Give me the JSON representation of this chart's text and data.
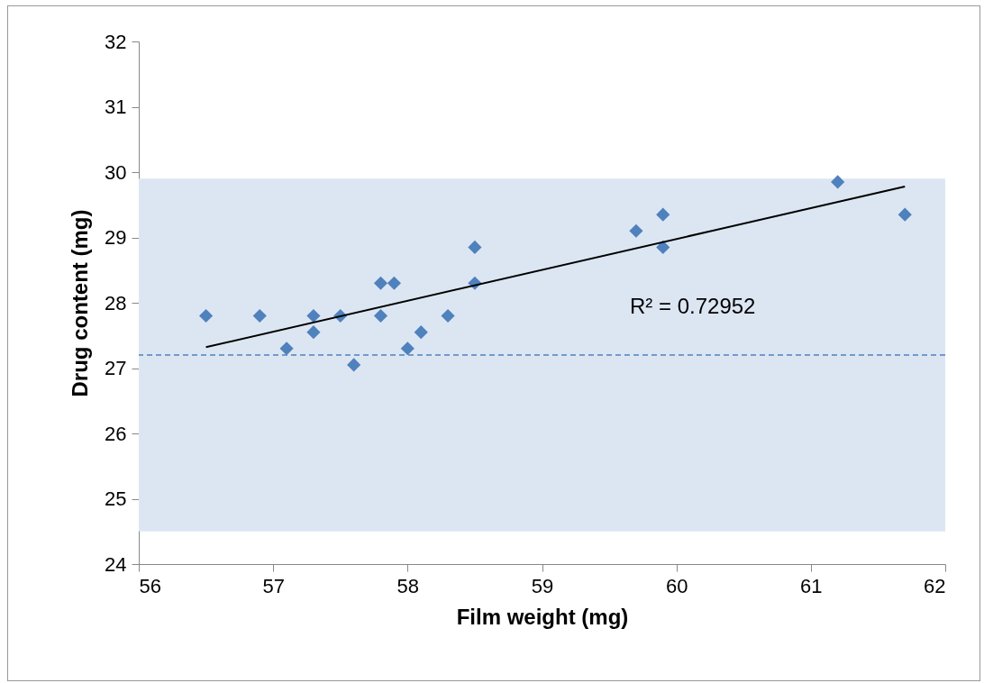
{
  "chart_data": {
    "type": "scatter",
    "xlabel": "Film weight (mg)",
    "ylabel": "Drug content (mg)",
    "xlim": [
      56,
      62
    ],
    "xticks": [
      56,
      57,
      58,
      59,
      60,
      61,
      62
    ],
    "ylim": [
      24,
      32
    ],
    "yticks": [
      24,
      25,
      26,
      27,
      28,
      29,
      30,
      31,
      32
    ],
    "marker": "diamond",
    "series": [
      {
        "color": "#4f81bd",
        "x": [
          56.5,
          56.9,
          57.1,
          57.3,
          57.3,
          57.5,
          57.6,
          57.8,
          57.8,
          57.9,
          58.0,
          58.1,
          58.3,
          58.5,
          58.5,
          59.7,
          59.9,
          59.9,
          61.2,
          61.7
        ],
        "values": [
          27.8,
          27.8,
          27.3,
          27.8,
          27.55,
          27.8,
          27.05,
          28.3,
          27.8,
          28.3,
          27.3,
          27.55,
          27.8,
          28.85,
          28.3,
          29.1,
          29.35,
          28.85,
          29.85,
          29.35
        ]
      },
      {
        "type": "line",
        "marker": "none",
        "color": "#000000",
        "x": [
          56.5,
          61.7
        ],
        "values": [
          27.32,
          29.78
        ]
      }
    ],
    "ref_lines": [
      {
        "axis": "y",
        "value": 27.2,
        "color": "#4f81bd",
        "line_style": "dashed"
      }
    ],
    "bands": [
      {
        "axis": "y",
        "from": 24.5,
        "to": 29.9,
        "color": "#dce6f2"
      }
    ],
    "annotations": [
      "R² = 0.72952"
    ]
  }
}
